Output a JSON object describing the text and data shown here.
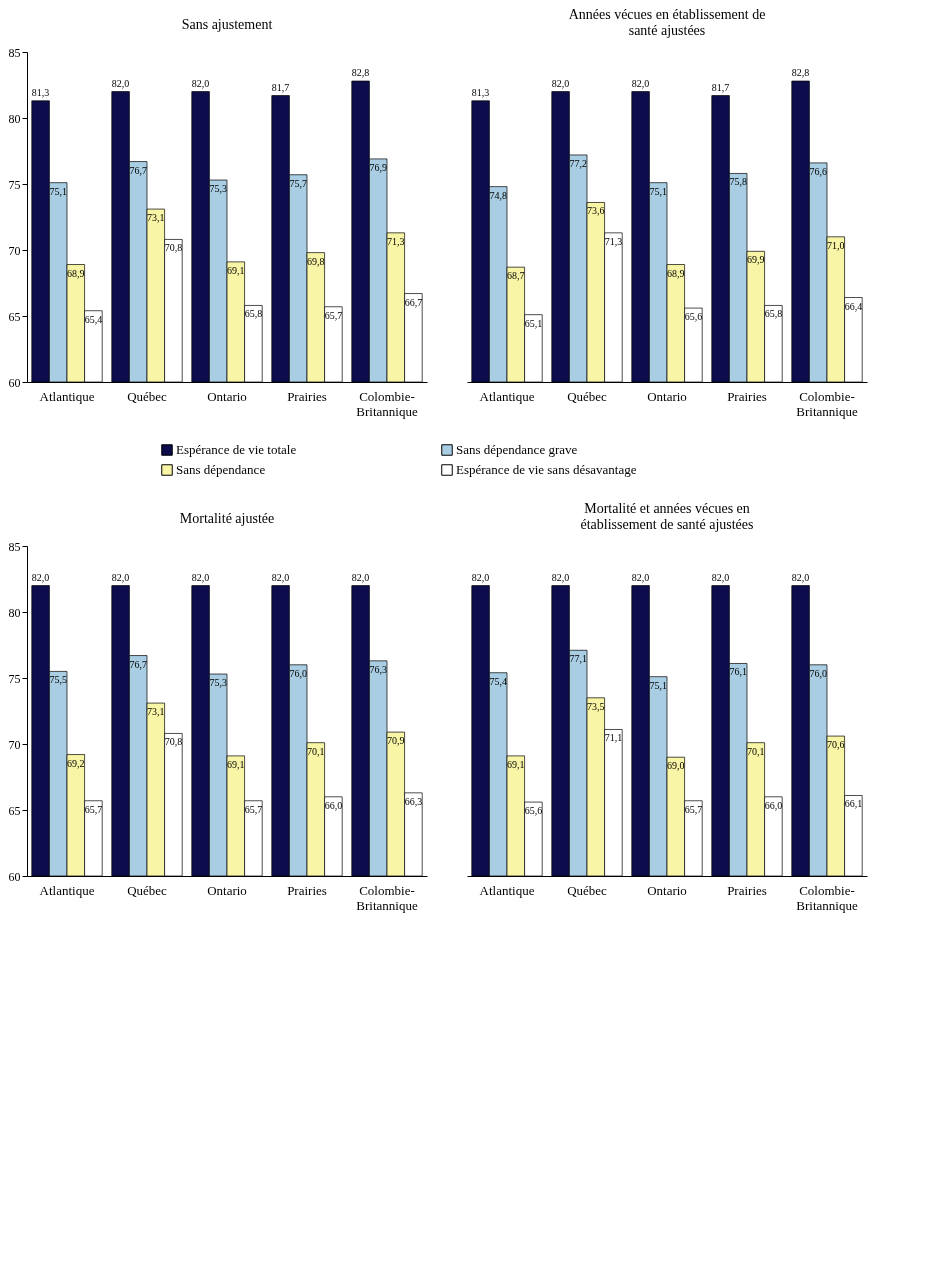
{
  "chart_data": [
    {
      "type": "bar",
      "title": "Sans ajustement",
      "categories": [
        "Atlantique",
        "Québec",
        "Ontario",
        "Prairies",
        "Colombie-Britannique"
      ],
      "ylim": [
        60,
        85
      ],
      "yticks": [
        60,
        65,
        70,
        75,
        80,
        85
      ],
      "grid": false,
      "legend": "bottom",
      "series": [
        {
          "name": "Espérance de vie totale",
          "color": "#0d0d4d",
          "values": [
            81.3,
            82.0,
            82.0,
            81.7,
            82.8
          ],
          "value_labels": [
            "81,3",
            "82,0",
            "82,0",
            "81,7",
            "82,8"
          ]
        },
        {
          "name": "Sans dépendance grave",
          "color": "#a9cde3",
          "values": [
            75.1,
            76.7,
            75.3,
            75.7,
            76.9
          ],
          "value_labels": [
            "75,1",
            "76,7",
            "75,3",
            "75,7",
            "76,9"
          ]
        },
        {
          "name": "Sans dépendance",
          "color": "#f9f5a6",
          "values": [
            68.9,
            73.1,
            69.1,
            69.8,
            71.3
          ],
          "value_labels": [
            "68,9",
            "73,1",
            "69,1",
            "69,8",
            "71,3"
          ]
        },
        {
          "name": "Espérance de vie sans désavantage",
          "color": "#ffffff",
          "values": [
            65.4,
            70.8,
            65.8,
            65.7,
            66.7
          ],
          "value_labels": [
            "65,4",
            "70,8",
            "65,8",
            "65,7",
            "66,7"
          ]
        }
      ]
    },
    {
      "type": "bar",
      "title": "Années vécues en établissement de santé ajustées",
      "categories": [
        "Atlantique",
        "Québec",
        "Ontario",
        "Prairies",
        "Colombie-Britannique"
      ],
      "ylim": [
        60,
        85
      ],
      "yticks": [
        60,
        65,
        70,
        75,
        80,
        85
      ],
      "tick_labels": "x",
      "grid": false,
      "series": [
        {
          "color": "#0d0d4d",
          "values": [
            81.3,
            82.0,
            82.0,
            81.7,
            82.8
          ],
          "value_labels": [
            "81,3",
            "82,0",
            "82,0",
            "81,7",
            "82,8"
          ]
        },
        {
          "color": "#a9cde3",
          "values": [
            74.8,
            77.2,
            75.1,
            75.8,
            76.6
          ],
          "value_labels": [
            "74,8",
            "77,2",
            "75,1",
            "75,8",
            "76,6"
          ]
        },
        {
          "color": "#f9f5a6",
          "values": [
            68.7,
            73.6,
            68.9,
            69.9,
            71.0
          ],
          "value_labels": [
            "68,7",
            "73,6",
            "68,9",
            "69,9",
            "71,0"
          ]
        },
        {
          "color": "#ffffff",
          "values": [
            65.1,
            71.3,
            65.6,
            65.8,
            66.4
          ],
          "value_labels": [
            "65,1",
            "71,3",
            "65,6",
            "65,8",
            "66,4"
          ]
        }
      ]
    },
    {
      "type": "bar",
      "title": "Mortalité ajustée",
      "categories": [
        "Atlantique",
        "Québec",
        "Ontario",
        "Prairies",
        "Colombie-Britannique"
      ],
      "ylim": [
        60,
        85
      ],
      "yticks": [
        60,
        65,
        70,
        75,
        80,
        85
      ],
      "grid": false,
      "series": [
        {
          "color": "#0d0d4d",
          "values": [
            82.0,
            82.0,
            82.0,
            82.0,
            82.0
          ],
          "value_labels": [
            "82,0",
            "82,0",
            "82,0",
            "82,0",
            "82,0"
          ]
        },
        {
          "color": "#a9cde3",
          "values": [
            75.5,
            76.7,
            75.3,
            76.0,
            76.3
          ],
          "value_labels": [
            "75,5",
            "76,7",
            "75,3",
            "76,0",
            "76,3"
          ]
        },
        {
          "color": "#f9f5a6",
          "values": [
            69.2,
            73.1,
            69.1,
            70.1,
            70.9
          ],
          "value_labels": [
            "69,2",
            "73,1",
            "69,1",
            "70,1",
            "70,9"
          ]
        },
        {
          "color": "#ffffff",
          "values": [
            65.7,
            70.8,
            65.7,
            66.0,
            66.3
          ],
          "value_labels": [
            "65,7",
            "70,8",
            "65,7",
            "66,0",
            "66,3"
          ]
        }
      ]
    },
    {
      "type": "bar",
      "title": "Mortalité et années vécues en établissement de santé ajustées",
      "categories": [
        "Atlantique",
        "Québec",
        "Ontario",
        "Prairies",
        "Colombie-Britannique"
      ],
      "ylim": [
        60,
        85
      ],
      "yticks": [
        60,
        65,
        70,
        75,
        80,
        85
      ],
      "tick_labels": "x",
      "grid": false,
      "series": [
        {
          "color": "#0d0d4d",
          "values": [
            82.0,
            82.0,
            82.0,
            82.0,
            82.0
          ],
          "value_labels": [
            "82,0",
            "82,0",
            "82,0",
            "82,0",
            "82,0"
          ]
        },
        {
          "color": "#a9cde3",
          "values": [
            75.4,
            77.1,
            75.1,
            76.1,
            76.0
          ],
          "value_labels": [
            "75,4",
            "77,1",
            "75,1",
            "76,1",
            "76,0"
          ]
        },
        {
          "color": "#f9f5a6",
          "values": [
            69.1,
            73.5,
            69.0,
            70.1,
            70.6
          ],
          "value_labels": [
            "69,1",
            "73,5",
            "69,0",
            "70,1",
            "70,6"
          ]
        },
        {
          "color": "#ffffff",
          "values": [
            65.6,
            71.1,
            65.7,
            66.0,
            66.1
          ],
          "value_labels": [
            "65,6",
            "71,1",
            "65,7",
            "66,0",
            "66,1"
          ]
        }
      ]
    }
  ]
}
